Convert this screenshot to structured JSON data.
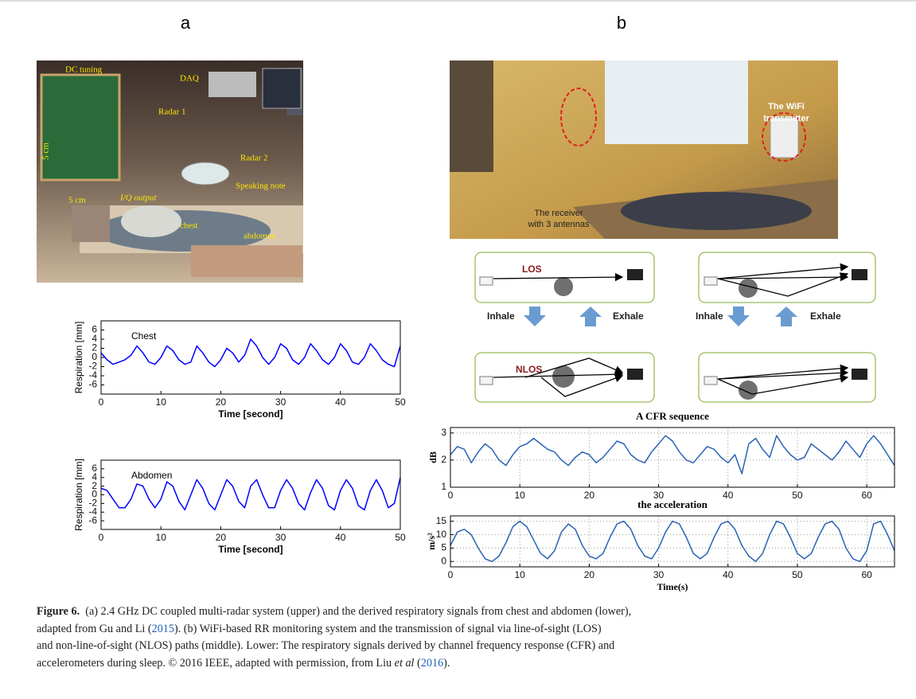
{
  "panels": {
    "a": {
      "letter": "a",
      "labels": [
        "DC tuning",
        "DAQ",
        "Radar 1",
        "Radar 2",
        "5 cm",
        "5 cm",
        "I/Q output",
        "Speaking note",
        "chest",
        "abdomen"
      ]
    },
    "b": {
      "letter": "b",
      "transmitter_label": [
        "The WiFi",
        "transmitter"
      ],
      "receiver_label": [
        "The receiver",
        "with 3 antennas"
      ]
    }
  },
  "diagram": {
    "los": "LOS",
    "nlos": "NLOS",
    "left_inhale": "Inhale",
    "left_exhale": "Exhale",
    "right_inhale": "Inhale",
    "right_exhale": "Exhale"
  },
  "chart_data": [
    {
      "type": "line",
      "annotation": "Chest",
      "ylabel": "Respiration [mm]",
      "xlabel": "Time [second]",
      "x": [
        0,
        1,
        2,
        3,
        4,
        5,
        6,
        7,
        8,
        9,
        10,
        11,
        12,
        13,
        14,
        15,
        16,
        17,
        18,
        19,
        20,
        21,
        22,
        23,
        24,
        25,
        26,
        27,
        28,
        29,
        30,
        31,
        32,
        33,
        34,
        35,
        36,
        37,
        38,
        39,
        40,
        41,
        42,
        43,
        44,
        45,
        46,
        47,
        48,
        49,
        50
      ],
      "values": [
        1,
        -0.5,
        -1.5,
        -1,
        -0.5,
        0.5,
        2.5,
        1,
        -1,
        -1.5,
        0,
        2.5,
        1.5,
        -0.5,
        -1.5,
        -1,
        2.5,
        1,
        -1,
        -2,
        -0.5,
        2,
        1,
        -1,
        0.5,
        4,
        2.5,
        0,
        -1.5,
        0,
        3,
        2,
        -0.5,
        -1.5,
        0,
        3,
        1.5,
        -0.5,
        -1.5,
        0,
        3,
        1.5,
        -1,
        -1.5,
        0,
        3,
        1.5,
        -0.5,
        -1.5,
        -2,
        2.5
      ],
      "color": "#0000ff",
      "xlim": [
        0,
        50
      ],
      "xticks": [
        0,
        10,
        20,
        30,
        40,
        50
      ],
      "ylim": [
        -8,
        8
      ],
      "yticks": [
        -6,
        -4,
        -2,
        0,
        2,
        4,
        6
      ],
      "grid": false
    },
    {
      "type": "line",
      "annotation": "Abdomen",
      "ylabel": "Respiration [mm]",
      "xlabel": "Time [second]",
      "x": [
        0,
        1,
        2,
        3,
        4,
        5,
        6,
        7,
        8,
        9,
        10,
        11,
        12,
        13,
        14,
        15,
        16,
        17,
        18,
        19,
        20,
        21,
        22,
        23,
        24,
        25,
        26,
        27,
        28,
        29,
        30,
        31,
        32,
        33,
        34,
        35,
        36,
        37,
        38,
        39,
        40,
        41,
        42,
        43,
        44,
        45,
        46,
        47,
        48,
        49,
        50
      ],
      "values": [
        1.5,
        1,
        -1,
        -3,
        -3,
        -1,
        2.5,
        2,
        -1,
        -3,
        -1,
        3,
        2,
        -1.5,
        -3.5,
        0,
        3.5,
        1.5,
        -2,
        -3.5,
        0,
        3.5,
        2,
        -1.5,
        -3,
        2,
        3.5,
        0,
        -3,
        -3,
        1,
        3.5,
        1.5,
        -2,
        -3.5,
        0.5,
        3.5,
        1.5,
        -2.5,
        -3.5,
        1,
        3.5,
        1.5,
        -2.5,
        -3.5,
        1,
        3.5,
        1,
        -3,
        -2,
        4
      ],
      "color": "#0000ff",
      "xlim": [
        0,
        50
      ],
      "xticks": [
        0,
        10,
        20,
        30,
        40,
        50
      ],
      "ylim": [
        -8,
        8
      ],
      "yticks": [
        -6,
        -4,
        -2,
        0,
        2,
        4,
        6
      ],
      "grid": false
    },
    {
      "type": "line",
      "title": "A CFR sequence",
      "ylabel": "dB",
      "x": [
        0,
        1,
        2,
        3,
        4,
        5,
        6,
        7,
        8,
        9,
        10,
        11,
        12,
        13,
        14,
        15,
        16,
        17,
        18,
        19,
        20,
        21,
        22,
        23,
        24,
        25,
        26,
        27,
        28,
        29,
        30,
        31,
        32,
        33,
        34,
        35,
        36,
        37,
        38,
        39,
        40,
        41,
        42,
        43,
        44,
        45,
        46,
        47,
        48,
        49,
        50,
        51,
        52,
        53,
        54,
        55,
        56,
        57,
        58,
        59,
        60,
        61,
        62,
        63,
        64
      ],
      "values": [
        2.2,
        2.5,
        2.4,
        1.9,
        2.3,
        2.6,
        2.4,
        2.0,
        1.8,
        2.2,
        2.5,
        2.6,
        2.8,
        2.6,
        2.4,
        2.3,
        2.0,
        1.8,
        2.1,
        2.3,
        2.2,
        1.9,
        2.1,
        2.4,
        2.7,
        2.6,
        2.2,
        2.0,
        1.9,
        2.3,
        2.6,
        2.9,
        2.7,
        2.3,
        2.0,
        1.9,
        2.2,
        2.5,
        2.4,
        2.1,
        1.9,
        2.2,
        1.5,
        2.6,
        2.8,
        2.4,
        2.1,
        2.9,
        2.5,
        2.2,
        2.0,
        2.1,
        2.6,
        2.4,
        2.2,
        2.0,
        2.3,
        2.7,
        2.4,
        2.1,
        2.6,
        2.9,
        2.6,
        2.2,
        1.8
      ],
      "color": "#2a62b5",
      "xlim": [
        0,
        64
      ],
      "xticks": [
        0,
        10,
        20,
        30,
        40,
        50,
        60
      ],
      "ylim": [
        1,
        3.2
      ],
      "yticks": [
        1,
        2,
        3
      ],
      "grid": true
    },
    {
      "type": "line",
      "title": "the acceleration",
      "ylabel": "m/s²",
      "xlabel": "Time(s)",
      "x": [
        0,
        1,
        2,
        3,
        4,
        5,
        6,
        7,
        8,
        9,
        10,
        11,
        12,
        13,
        14,
        15,
        16,
        17,
        18,
        19,
        20,
        21,
        22,
        23,
        24,
        25,
        26,
        27,
        28,
        29,
        30,
        31,
        32,
        33,
        34,
        35,
        36,
        37,
        38,
        39,
        40,
        41,
        42,
        43,
        44,
        45,
        46,
        47,
        48,
        49,
        50,
        51,
        52,
        53,
        54,
        55,
        56,
        57,
        58,
        59,
        60,
        61,
        62,
        63,
        64
      ],
      "values": [
        6,
        11,
        12,
        10,
        5,
        1,
        0,
        2,
        7,
        13,
        15,
        13,
        8,
        3,
        1,
        4,
        11,
        14,
        12,
        6,
        2,
        1,
        3,
        9,
        14,
        15,
        12,
        6,
        2,
        1,
        5,
        11,
        15,
        14,
        9,
        3,
        1,
        3,
        9,
        14,
        15,
        12,
        6,
        2,
        0,
        3,
        10,
        15,
        14,
        9,
        3,
        1,
        3,
        9,
        14,
        15,
        12,
        5,
        1,
        0,
        4,
        14,
        15,
        10,
        4
      ],
      "color": "#2a62b5",
      "xlim": [
        0,
        64
      ],
      "xticks": [
        0,
        10,
        20,
        30,
        40,
        50,
        60
      ],
      "ylim": [
        -2,
        17
      ],
      "yticks": [
        0,
        5,
        10,
        15
      ],
      "grid": true
    }
  ],
  "caption": {
    "label": "Figure 6.",
    "line_1": "  (a) 2.4 GHz DC coupled multi-radar system (upper) and the derived respiratory signals from chest and abdomen (lower),",
    "line_2_before": "adapted from Gu and Li (",
    "line_2_link": "2015",
    "line_2_after": "). (b) WiFi-based RR monitoring system and the transmission of signal via line-of-sight (LOS)",
    "line_3": "and non-line-of-sight (NLOS) paths (middle). Lower: The respiratory signals derived by channel frequency response (CFR) and",
    "line_4_before": "accelerometers during sleep. © 2016 IEEE, adapted with permission, from Liu ",
    "line_4_italic": "et al",
    "line_4_mid": " (",
    "line_4_link": "2016",
    "line_4_after": ")."
  }
}
